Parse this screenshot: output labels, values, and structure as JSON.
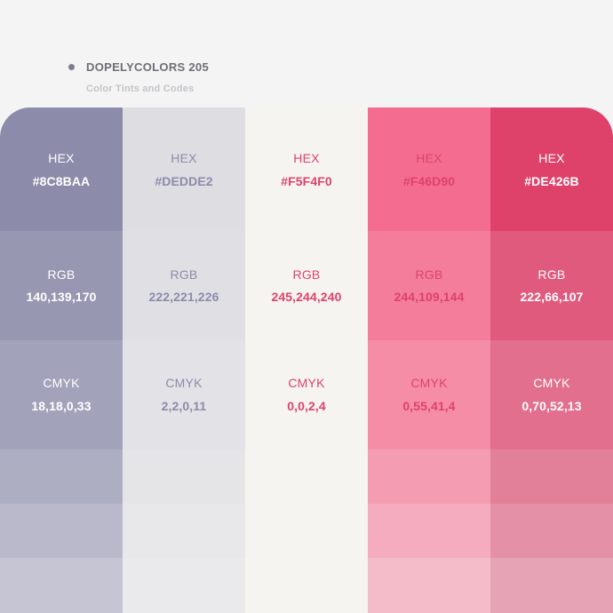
{
  "header": {
    "title": "DOPELYCOLORS 205",
    "subtitle": "Color Tints and Codes"
  },
  "labels": {
    "hex": "HEX",
    "rgb": "RGB",
    "cmyk": "CMYK"
  },
  "colors": [
    {
      "hex": "#8C8BAA",
      "rgb": "140,139,170",
      "cmyk": "18,18,0,33",
      "tints": [
        "#8C8BAA",
        "#9797B2",
        "#A3A2BB",
        "#AEAEC3",
        "#BAB9CC",
        "#C5C5D4"
      ],
      "label_color": "#FFFFFF",
      "value_color": "#FFFFFF"
    },
    {
      "hex": "#DEDDE2",
      "rgb": "222,221,226",
      "cmyk": "2,2,0,11",
      "tints": [
        "#DEDDE2",
        "#E0E0E4",
        "#E3E2E6",
        "#E5E5E8",
        "#E8E7EA",
        "#EAEAEC"
      ],
      "label_color": "#8C8BAA",
      "value_color": "#8C8BAA"
    },
    {
      "hex": "#F5F4F0",
      "rgb": "245,244,240",
      "cmyk": "0,0,2,4",
      "tints": [
        "#F5F4F0",
        "#F5F4F0",
        "#F5F4F0",
        "#F5F4F0",
        "#F5F4F0",
        "#F5F4F0"
      ],
      "label_color": "#DE426B",
      "value_color": "#DE426B"
    },
    {
      "hex": "#F46D90",
      "rgb": "244,109,144",
      "cmyk": "0,55,41,4",
      "tints": [
        "#F46D90",
        "#F47D9C",
        "#F58DA7",
        "#F49CB2",
        "#F4ACBE",
        "#F4BCC9"
      ],
      "label_color": "#DE426B",
      "value_color": "#DE426B"
    },
    {
      "hex": "#DE426B",
      "rgb": "222,66,107",
      "cmyk": "0,70,52,13",
      "tints": [
        "#DE426B",
        "#E05A7D",
        "#E26F8E",
        "#E27F99",
        "#E491A8",
        "#E6A3B5"
      ],
      "label_color": "#FFFFFF",
      "value_color": "#FFFFFF"
    }
  ]
}
